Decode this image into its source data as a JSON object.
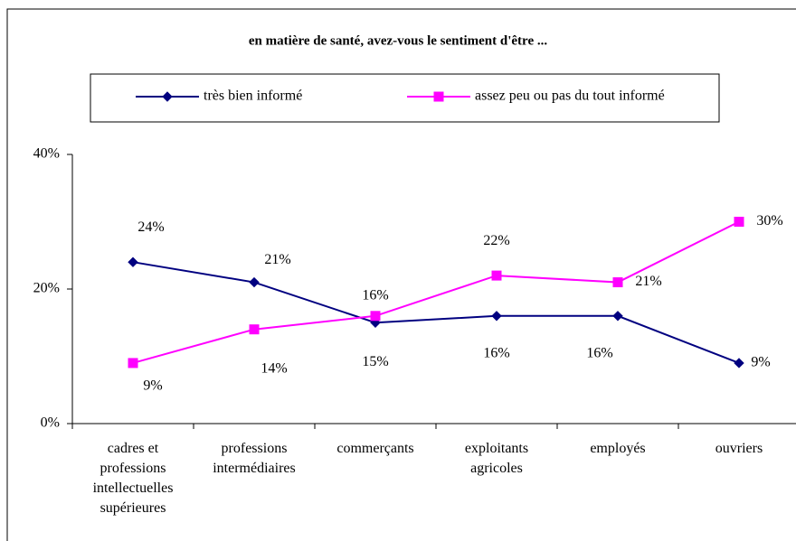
{
  "chart_data": {
    "type": "line",
    "title": "en matière de santé, avez-vous le sentiment d'être ...",
    "categories": [
      "cadres et\nprofessions\nintellectuelles\nsupérieures",
      "professions\nintermédiaires",
      "commerçants",
      "exploitants\nagricoles",
      "employés",
      "ouvriers"
    ],
    "series": [
      {
        "name": "très bien informé",
        "color": "#000080",
        "marker": "diamond",
        "values": [
          24,
          21,
          15,
          16,
          16,
          9
        ],
        "value_labels": [
          "24%",
          "21%",
          "15%",
          "16%",
          "16%",
          "9%"
        ]
      },
      {
        "name": "assez peu ou pas du tout informé",
        "color": "#ff00ff",
        "marker": "square",
        "values": [
          9,
          14,
          16,
          22,
          21,
          30
        ],
        "value_labels": [
          "9%",
          "14%",
          "16%",
          "22%",
          "21%",
          "30%"
        ]
      }
    ],
    "ylim": [
      0,
      40
    ],
    "yticks": [
      {
        "value": 0,
        "label": "0%"
      },
      {
        "value": 20,
        "label": "20%"
      },
      {
        "value": 40,
        "label": "40%"
      }
    ],
    "grid": false
  }
}
